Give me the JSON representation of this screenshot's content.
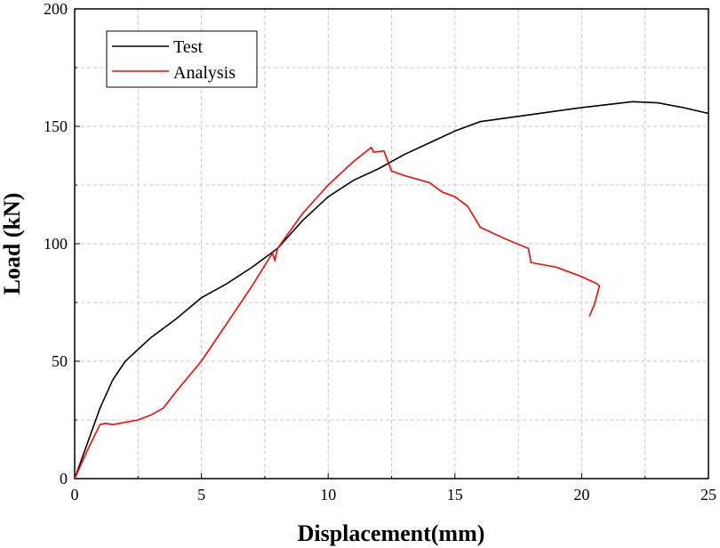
{
  "chart_data": {
    "type": "line",
    "title": "",
    "xlabel": "Displacement(mm)",
    "ylabel": "Load (kN)",
    "xlim": [
      0,
      25
    ],
    "ylim": [
      0,
      200
    ],
    "xticks": [
      "0",
      "5",
      "10",
      "15",
      "20",
      "25"
    ],
    "yticks": [
      "0",
      "50",
      "100",
      "150",
      "200"
    ],
    "grid": true,
    "legend_position": "top-left",
    "series": [
      {
        "name": "Test",
        "color": "#000000",
        "x": [
          0,
          0.5,
          1,
          1.5,
          2,
          3,
          4,
          5,
          6,
          7,
          8,
          9,
          10,
          11,
          12,
          13,
          14,
          15,
          16,
          18,
          20,
          22,
          23,
          24,
          25
        ],
        "y": [
          0,
          15,
          30,
          42,
          50,
          60,
          68,
          77,
          83,
          90,
          98,
          110,
          120,
          127,
          132,
          138,
          143,
          148,
          152,
          155,
          158,
          160.5,
          160,
          158,
          155.5
        ]
      },
      {
        "name": "Analysis",
        "color": "#ff0000",
        "x": [
          0,
          0.5,
          1,
          1.2,
          1.5,
          2.5,
          3,
          3.5,
          4,
          5,
          6,
          7,
          7.8,
          7.9,
          8,
          9,
          10,
          11,
          11.7,
          11.8,
          12.2,
          12.5,
          13,
          14,
          14.5,
          15,
          15.5,
          16,
          17,
          17.9,
          18,
          19,
          20,
          20.6,
          20.7,
          20.5,
          20.3
        ],
        "y": [
          0,
          12,
          23,
          23.5,
          23,
          25,
          27,
          30,
          37,
          50,
          66,
          82,
          96,
          93,
          98,
          113,
          125,
          135,
          141,
          139,
          139.5,
          131,
          129,
          126,
          122,
          120,
          116,
          107,
          102,
          98,
          92,
          90,
          86,
          83,
          82,
          74,
          69
        ]
      }
    ]
  }
}
